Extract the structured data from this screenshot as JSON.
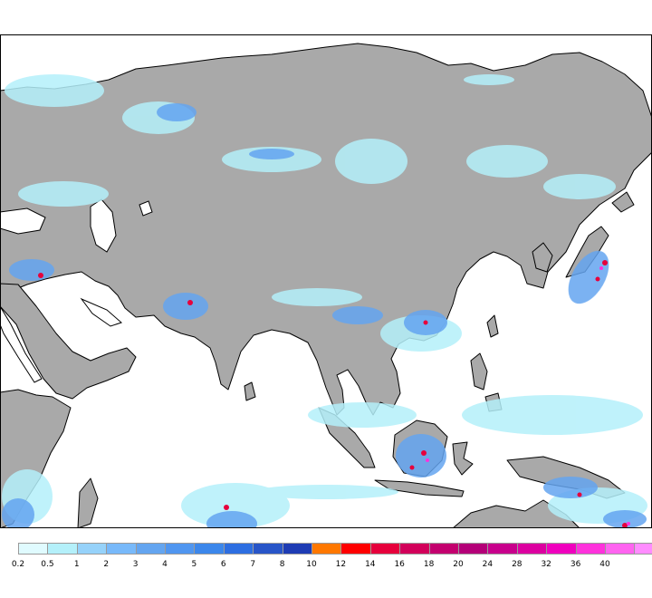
{
  "map": {
    "region": "Asia, Indian Ocean and Maritime Continent",
    "land_color": "#a9a9a9",
    "water_color": "#ffffff",
    "coastline_color": "#000000"
  },
  "legend": {
    "ticks": [
      "0.2",
      "0.5",
      "1",
      "2",
      "3",
      "4",
      "5",
      "6",
      "7",
      "8",
      "10",
      "12",
      "14",
      "16",
      "18",
      "20",
      "24",
      "28",
      "32",
      "36",
      "40"
    ],
    "colors": [
      "#e0fbff",
      "#b4f0fa",
      "#96d2fa",
      "#78b9fa",
      "#64a5f0",
      "#5096f0",
      "#3c87eb",
      "#2d6ee1",
      "#2855c8",
      "#1e3cb4",
      "#ff7800",
      "#ff0000",
      "#e6003c",
      "#d2005a",
      "#c3006e",
      "#b40078",
      "#c8008c",
      "#dc00a0",
      "#f000be",
      "#ff32dc",
      "#ff64f0",
      "#ff8cff"
    ]
  }
}
